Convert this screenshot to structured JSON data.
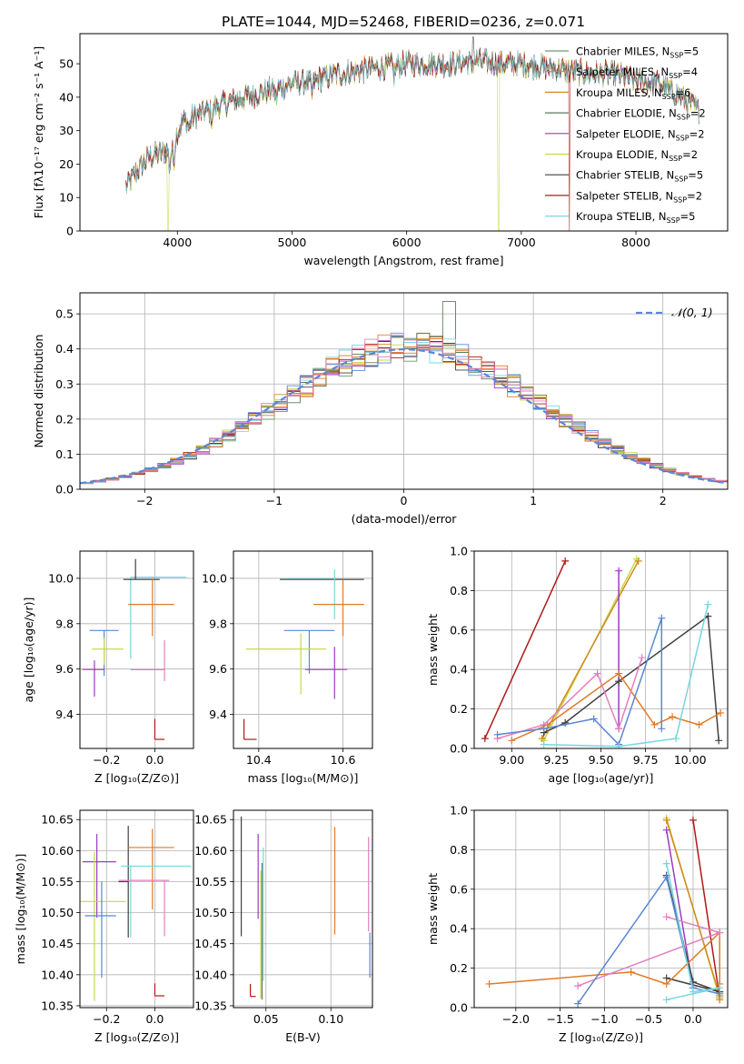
{
  "figure": {
    "title": "PLATE=1044, MJD=52468, FIBERID=0236, z=0.071"
  },
  "colors": {
    "chabrier_miles": "#6a9b6a",
    "salpeter_miles": "#e0823c",
    "kroupa_miles": "#d08a20",
    "chabrier_elodie": "#5a7a5a",
    "salpeter_elodie": "#9a3cc0",
    "kroupa_elodie": "#c8d846",
    "chabrier_stelib": "#404040",
    "salpeter_stelib": "#b01818",
    "kroupa_stelib": "#78d6e0",
    "blue": "#5b86d6",
    "orange": "#e07a26",
    "pink": "#e37fbf",
    "grid": "#b0b0b0"
  },
  "chart_data": [
    {
      "id": "spectrum",
      "type": "line",
      "title": "PLATE=1044, MJD=52468, FIBERID=0236, z=0.071",
      "xlabel": "wavelength [Angstrom, rest frame]",
      "ylabel": "Flux [fλ10⁻¹⁷ erg cm⁻² s⁻¹ A⁻¹]",
      "xlim": [
        3150,
        8800
      ],
      "ylim": [
        0,
        59
      ],
      "xticks": [
        4000,
        5000,
        6000,
        7000,
        8000
      ],
      "yticks": [
        0,
        10,
        20,
        30,
        40,
        50
      ],
      "grid": false,
      "legend_position": "top-right",
      "legend": [
        "Chabrier MILES, N_SSP=5",
        "Salpeter MILES, N_SSP=4",
        "Kroupa MILES, N_SSP=6",
        "Chabrier ELODIE, N_SSP=2",
        "Salpeter ELODIE, N_SSP=2",
        "Kroupa ELODIE, N_SSP=2",
        "Chabrier STELIB, N_SSP=5",
        "Salpeter STELIB, N_SSP=2",
        "Kroupa STELIB, N_SSP=5"
      ],
      "x_range": [
        3550,
        8550
      ],
      "continuum": {
        "x": [
          3550,
          3650,
          3750,
          3900,
          3950,
          4050,
          4200,
          4400,
          4600,
          4800,
          5000,
          5200,
          5400,
          5600,
          5800,
          6000,
          6200,
          6400,
          6600,
          6800,
          7000,
          7200,
          7400,
          7600,
          7800,
          8000,
          8200,
          8400,
          8550
        ],
        "y": [
          13,
          18,
          22,
          24,
          26,
          33,
          35,
          38,
          40,
          42,
          44,
          45,
          47,
          48,
          49,
          50,
          50,
          50,
          51,
          50,
          50,
          49,
          48,
          47,
          47,
          45,
          44,
          40,
          36
        ]
      }
    },
    {
      "id": "residuals",
      "type": "histogram",
      "xlabel": "(data-model)/error",
      "ylabel": "Normed distribution",
      "xlim": [
        -2.5,
        2.5
      ],
      "ylim": [
        0,
        0.56
      ],
      "xticks": [
        -2,
        -1,
        0,
        1,
        2
      ],
      "yticks": [
        0.0,
        0.1,
        0.2,
        0.3,
        0.4,
        0.5
      ],
      "grid": true,
      "legend_position": "top-right",
      "legend": [
        "𝒩(0, 1)"
      ],
      "bin_width": 0.1
    },
    {
      "id": "age-vs-Z",
      "type": "errorbar",
      "xlabel": "Z [log₁₀(Z/Z⊙)]",
      "ylabel": "age  [log₁₀(age/yr)]",
      "xlim": [
        -0.31,
        0.16
      ],
      "ylim": [
        9.25,
        10.12
      ],
      "xticks": [
        -0.2,
        0.0
      ],
      "yticks": [
        9.4,
        9.6,
        9.8,
        10.0
      ],
      "grid": true,
      "points": [
        {
          "series": "kroupa_stelib",
          "x": -0.1,
          "y": 10.005,
          "xl": 0.0,
          "xh": 0.23,
          "yl": 0.36,
          "yh": 0.0
        },
        {
          "series": "chabrier_stelib",
          "x": -0.08,
          "y": 9.995,
          "xl": 0.05,
          "xh": 0.1,
          "yl": 0.0,
          "yh": 0.09
        },
        {
          "series": "orange",
          "x": -0.01,
          "y": 9.885,
          "xl": 0.1,
          "xh": 0.09,
          "yl": 0.14,
          "yh": 0.11
        },
        {
          "series": "blue",
          "x": -0.21,
          "y": 9.77,
          "xl": 0.06,
          "xh": 0.06,
          "yl": 0.2,
          "yh": 0.0
        },
        {
          "series": "kroupa_elodie",
          "x": -0.21,
          "y": 9.688,
          "xl": 0.05,
          "xh": 0.08,
          "yl": 0.07,
          "yh": 0.05
        },
        {
          "series": "salpeter_elodie",
          "x": -0.25,
          "y": 9.598,
          "xl": 0.05,
          "xh": 0.04,
          "yl": 0.12,
          "yh": 0.04
        },
        {
          "series": "pink",
          "x": 0.04,
          "y": 9.597,
          "xl": 0.14,
          "xh": 0.0,
          "yl": 0.05,
          "yh": 0.13
        },
        {
          "series": "salpeter_stelib",
          "x": 0.0,
          "y": 9.29,
          "xl": 0.0,
          "xh": 0.04,
          "yl": 0.0,
          "yh": 0.09
        }
      ]
    },
    {
      "id": "age-vs-mass",
      "type": "errorbar",
      "xlabel": "mass [log₁₀(M/M⊙)]",
      "ylabel": "",
      "xlim": [
        10.34,
        10.67
      ],
      "ylim": [
        9.25,
        10.12
      ],
      "xticks": [
        10.4,
        10.6
      ],
      "yticks": [
        9.4,
        9.6,
        9.8,
        10.0
      ],
      "grid": true,
      "points": [
        {
          "series": "chabrier_stelib",
          "x": 10.55,
          "y": 9.995,
          "xl": 0.1,
          "xh": 0.1,
          "yl": 0.0,
          "yh": 0.0
        },
        {
          "series": "kroupa_stelib",
          "x": 10.58,
          "y": 10.0,
          "xl": 0.12,
          "xh": 0.0,
          "yl": 0.18,
          "yh": 0.04
        },
        {
          "series": "orange",
          "x": 10.6,
          "y": 9.885,
          "xl": 0.07,
          "xh": 0.05,
          "yl": 0.14,
          "yh": 0.11
        },
        {
          "series": "blue",
          "x": 10.52,
          "y": 9.77,
          "xl": 0.06,
          "xh": 0.06,
          "yl": 0.19,
          "yh": 0.0
        },
        {
          "series": "kroupa_elodie",
          "x": 10.5,
          "y": 9.688,
          "xl": 0.13,
          "xh": 0.06,
          "yl": 0.2,
          "yh": 0.07
        },
        {
          "series": "salpeter_elodie",
          "x": 10.58,
          "y": 9.598,
          "xl": 0.07,
          "xh": 0.03,
          "yl": 0.13,
          "yh": 0.1
        },
        {
          "series": "salpeter_stelib",
          "x": 10.365,
          "y": 9.29,
          "xl": 0.0,
          "xh": 0.03,
          "yl": 0.0,
          "yh": 0.09
        }
      ]
    },
    {
      "id": "massweight-vs-age",
      "type": "line",
      "xlabel": "age  [log₁₀(age/yr)]",
      "ylabel": "mass weight",
      "xlim": [
        8.79,
        10.21
      ],
      "ylim": [
        0,
        1.0
      ],
      "xticks": [
        9.0,
        9.25,
        9.5,
        9.75,
        10.0
      ],
      "yticks": [
        0.0,
        0.2,
        0.4,
        0.6,
        0.8,
        1.0
      ],
      "grid": true,
      "series": [
        {
          "series": "salpeter_stelib",
          "x": [
            8.85,
            9.3
          ],
          "y": [
            0.05,
            0.95
          ]
        },
        {
          "series": "kroupa_elodie",
          "x": [
            9.18,
            9.7
          ],
          "y": [
            0.04,
            0.96
          ]
        },
        {
          "series": "kroupa_miles",
          "x": [
            9.17,
            9.71
          ],
          "y": [
            0.05,
            0.95
          ]
        },
        {
          "series": "salpeter_elodie",
          "x": [
            9.6,
            9.6
          ],
          "y": [
            0.1,
            0.9
          ]
        },
        {
          "series": "chabrier_stelib",
          "x": [
            9.18,
            9.3,
            9.6,
            10.1,
            10.16
          ],
          "y": [
            0.08,
            0.13,
            0.34,
            0.67,
            0.04
          ]
        },
        {
          "series": "orange",
          "x": [
            9.0,
            9.2,
            9.6,
            9.8,
            9.9,
            10.05,
            10.17
          ],
          "y": [
            0.04,
            0.12,
            0.38,
            0.12,
            0.16,
            0.12,
            0.18
          ]
        },
        {
          "series": "pink",
          "x": [
            8.92,
            9.18,
            9.48,
            9.6,
            9.73
          ],
          "y": [
            0.05,
            0.12,
            0.38,
            0.1,
            0.46
          ]
        },
        {
          "series": "blue",
          "x": [
            8.92,
            9.18,
            9.46,
            9.6,
            9.84,
            9.84
          ],
          "y": [
            0.07,
            0.1,
            0.15,
            0.02,
            0.66,
            0.1
          ]
        },
        {
          "series": "kroupa_stelib",
          "x": [
            9.18,
            9.6,
            9.92,
            10.1
          ],
          "y": [
            0.02,
            0.01,
            0.05,
            0.73
          ]
        }
      ]
    },
    {
      "id": "mass-vs-Z",
      "type": "errorbar",
      "xlabel": "Z [log₁₀(Z/Z⊙)]",
      "ylabel": "mass [log₁₀(M/M⊙)]",
      "xlim": [
        -0.31,
        0.16
      ],
      "ylim": [
        10.347,
        10.665
      ],
      "xticks": [
        -0.2,
        0.0
      ],
      "yticks": [
        10.35,
        10.4,
        10.45,
        10.5,
        10.55,
        10.6,
        10.65
      ],
      "grid": true,
      "points": [
        {
          "series": "chabrier_stelib",
          "x": -0.11,
          "y": 10.55,
          "xl": 0.04,
          "xh": 0.0,
          "yl": 0.09,
          "yh": 0.09
        },
        {
          "series": "orange",
          "x": -0.01,
          "y": 10.605,
          "xl": 0.1,
          "xh": 0.09,
          "yl": 0.1,
          "yh": 0.03
        },
        {
          "series": "salpeter_elodie",
          "x": -0.24,
          "y": 10.582,
          "xl": 0.06,
          "xh": 0.08,
          "yl": 0.09,
          "yh": 0.045
        },
        {
          "series": "kroupa_stelib",
          "x": -0.1,
          "y": 10.575,
          "xl": 0.04,
          "xh": 0.25,
          "yl": 0.115,
          "yh": 0.0
        },
        {
          "series": "pink",
          "x": 0.04,
          "y": 10.552,
          "xl": 0.19,
          "xh": 0.02,
          "yl": 0.09,
          "yh": 0.0
        },
        {
          "series": "kroupa_elodie",
          "x": -0.25,
          "y": 10.518,
          "xl": 0.06,
          "xh": 0.13,
          "yl": 0.16,
          "yh": 0.08
        },
        {
          "series": "blue",
          "x": -0.22,
          "y": 10.495,
          "xl": 0.07,
          "xh": 0.06,
          "yl": 0.1,
          "yh": 0.055
        },
        {
          "series": "salpeter_stelib",
          "x": 0.0,
          "y": 10.366,
          "xl": 0.0,
          "xh": 0.04,
          "yl": 0.0,
          "yh": 0.02
        }
      ]
    },
    {
      "id": "mass-vs-EBV",
      "type": "errorbar",
      "xlabel": "E(B-V)",
      "ylabel": "",
      "xlim": [
        0.025,
        0.132
      ],
      "ylim": [
        10.347,
        10.665
      ],
      "xticks": [
        0.05,
        0.1
      ],
      "yticks": [
        10.35,
        10.4,
        10.45,
        10.5,
        10.55,
        10.6,
        10.65
      ],
      "grid": true,
      "vlines": [
        {
          "series": "chabrier_stelib",
          "x": 0.031,
          "ylo": 10.462,
          "yhi": 10.655
        },
        {
          "series": "salpeter_stelib",
          "x": 0.038,
          "ylo": 10.365,
          "yhi": 10.385
        },
        {
          "series": "salpeter_elodie",
          "x": 0.044,
          "ylo": 10.49,
          "yhi": 10.627
        },
        {
          "series": "kroupa_elodie",
          "x": 0.046,
          "ylo": 10.362,
          "yhi": 10.568
        },
        {
          "series": "chabrier_elodie",
          "x": 0.047,
          "ylo": 10.36,
          "yhi": 10.58
        },
        {
          "series": "kroupa_stelib",
          "x": 0.048,
          "ylo": 10.39,
          "yhi": 10.605
        },
        {
          "series": "orange",
          "x": 0.103,
          "ylo": 10.465,
          "yhi": 10.638
        },
        {
          "series": "pink",
          "x": 0.129,
          "ylo": 10.47,
          "yhi": 10.622
        },
        {
          "series": "blue",
          "x": 0.13,
          "ylo": 10.395,
          "yhi": 10.468
        }
      ]
    },
    {
      "id": "massweight-vs-Z",
      "type": "line",
      "xlabel": "Z [log₁₀(Z/Z⊙)]",
      "ylabel": "mass weight",
      "xlim": [
        -2.47,
        0.39
      ],
      "ylim": [
        0,
        1.0
      ],
      "xticks": [
        -2.0,
        -1.5,
        -1.0,
        -0.5,
        0.0
      ],
      "yticks": [
        0.0,
        0.2,
        0.4,
        0.6,
        0.8,
        1.0
      ],
      "grid": true,
      "series": [
        {
          "series": "salpeter_stelib",
          "x": [
            0.0,
            0.3
          ],
          "y": [
            0.95,
            0.05
          ]
        },
        {
          "series": "kroupa_elodie",
          "x": [
            -0.3,
            0.3
          ],
          "y": [
            0.96,
            0.05
          ]
        },
        {
          "series": "kroupa_miles",
          "x": [
            -0.3,
            0.3
          ],
          "y": [
            0.95,
            0.06
          ]
        },
        {
          "series": "salpeter_elodie",
          "x": [
            -0.3,
            0.0
          ],
          "y": [
            0.9,
            0.1
          ]
        },
        {
          "series": "chabrier_stelib",
          "x": [
            -0.3,
            0.0,
            0.3,
            -0.3
          ],
          "y": [
            0.67,
            0.13,
            0.08,
            0.15
          ]
        },
        {
          "series": "orange",
          "x": [
            -2.3,
            -0.7,
            -0.3,
            0.3,
            0.3,
            0.3
          ],
          "y": [
            0.12,
            0.18,
            0.12,
            0.38,
            0.04,
            0.12
          ]
        },
        {
          "series": "pink",
          "x": [
            -0.3,
            0.3,
            -1.3
          ],
          "y": [
            0.46,
            0.38,
            0.11
          ]
        },
        {
          "series": "blue",
          "x": [
            -1.3,
            -0.3,
            0.0,
            0.3
          ],
          "y": [
            0.02,
            0.66,
            0.1,
            0.07
          ]
        },
        {
          "series": "kroupa_stelib",
          "x": [
            -0.3,
            0.0,
            0.3,
            -0.3
          ],
          "y": [
            0.73,
            0.08,
            0.1,
            0.04
          ]
        }
      ]
    }
  ]
}
